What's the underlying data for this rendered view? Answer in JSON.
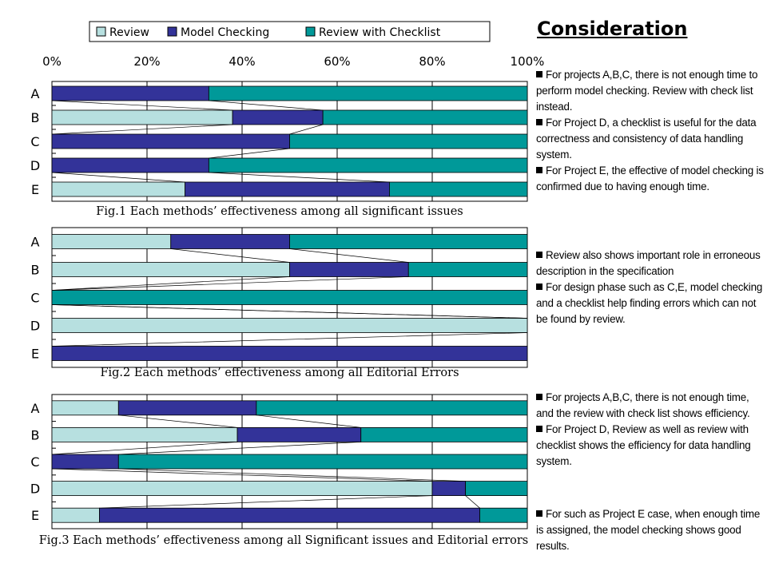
{
  "legend": {
    "items": [
      {
        "label": "Review",
        "color": "#b7e0e0"
      },
      {
        "label": "Model Checking",
        "color": "#333399"
      },
      {
        "label": "Review with Checklist",
        "color": "#009999"
      }
    ]
  },
  "axis": {
    "tick_labels": [
      "0%",
      "20%",
      "40%",
      "60%",
      "80%",
      "100%"
    ]
  },
  "chart_data": [
    {
      "type": "bar",
      "stacked": "100%",
      "orientation": "horizontal",
      "title": "Fig.1 Each methods’ effectiveness among all significant issues",
      "categories": [
        "A",
        "B",
        "C",
        "D",
        "E"
      ],
      "series": [
        {
          "name": "Review",
          "values": [
            0,
            38,
            0,
            0,
            28
          ]
        },
        {
          "name": "Model Checking",
          "values": [
            33,
            19,
            50,
            33,
            43
          ]
        },
        {
          "name": "Review with Checklist",
          "values": [
            67,
            43,
            50,
            67,
            29
          ]
        }
      ],
      "xlim": [
        0,
        100
      ],
      "grid": true
    },
    {
      "type": "bar",
      "stacked": "100%",
      "orientation": "horizontal",
      "title": "Fig.2 Each methods’ effectiveness among all Editorial Errors",
      "categories": [
        "A",
        "B",
        "C",
        "D",
        "E"
      ],
      "series": [
        {
          "name": "Review",
          "values": [
            25,
            50,
            0,
            100,
            0
          ]
        },
        {
          "name": "Model Checking",
          "values": [
            25,
            25,
            0,
            0,
            100
          ]
        },
        {
          "name": "Review with Checklist",
          "values": [
            50,
            25,
            100,
            0,
            0
          ]
        }
      ],
      "xlim": [
        0,
        100
      ],
      "grid": true
    },
    {
      "type": "bar",
      "stacked": "100%",
      "orientation": "horizontal",
      "title": "Fig.3 Each methods’ effectiveness among all Significant issues and Editorial errors",
      "categories": [
        "A",
        "B",
        "C",
        "D",
        "E"
      ],
      "series": [
        {
          "name": "Review",
          "values": [
            14,
            39,
            0,
            80,
            10
          ]
        },
        {
          "name": "Model Checking",
          "values": [
            29,
            26,
            14,
            7,
            80
          ]
        },
        {
          "name": "Review with Checklist",
          "values": [
            57,
            35,
            86,
            13,
            10
          ]
        }
      ],
      "xlim": [
        0,
        100
      ],
      "grid": true
    }
  ],
  "consideration": {
    "title": "Consideration",
    "groups": [
      [
        "For projects A,B,C, there is not enough time to perform model checking. Review with check list instead.",
        "For Project D, a checklist is useful for the data correctness and consistency of data handling system.",
        "For Project E, the effective of model checking is confirmed due to having enough time."
      ],
      [
        "Review also shows important role in erroneous description in the specification",
        "For design phase such as C,E, model checking and a checklist help finding errors which can not be found by review."
      ],
      [
        "For projects A,B,C, there is not enough time, and the review with check list shows efficiency.",
        "For Project D, Review as well as review with checklist shows the efficiency for data handling system."
      ],
      [
        "For such as Project E case, when enough time is assigned, the model checking shows good results."
      ]
    ]
  }
}
